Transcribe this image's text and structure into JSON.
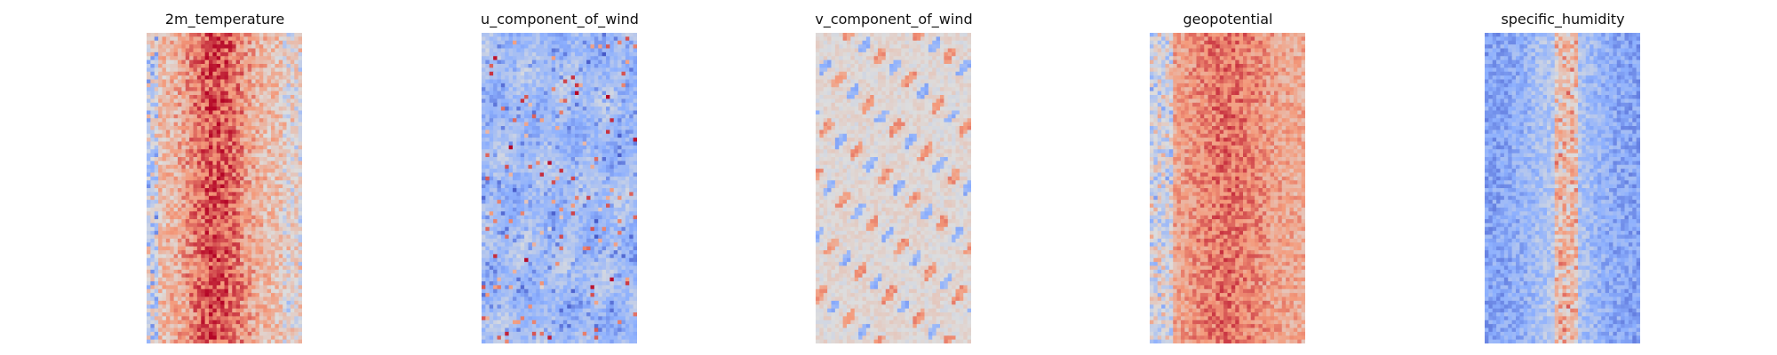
{
  "chart_data": [
    {
      "type": "heatmap",
      "title": "2m_temperature",
      "colormap": "coolwarm",
      "grid": false,
      "axes_visible": false,
      "pattern": "warm central band (dark red) flanked by lighter salmon, cool blue speckle along left edge"
    },
    {
      "type": "heatmap",
      "title": "u_component_of_wind",
      "colormap": "coolwarm",
      "grid": false,
      "axes_visible": false,
      "pattern": "predominantly light blue with scattered darker blue patches and sparse red streaks"
    },
    {
      "type": "heatmap",
      "title": "v_component_of_wind",
      "colormap": "coolwarm",
      "grid": false,
      "axes_visible": false,
      "pattern": "near-neutral grey/beige field with small scattered red and blue blobs"
    },
    {
      "type": "heatmap",
      "title": "geopotential",
      "colormap": "coolwarm",
      "grid": false,
      "axes_visible": false,
      "pattern": "salmon/red field with darker red center speckle, blue streaks on left margin"
    },
    {
      "type": "heatmap",
      "title": "specific_humidity",
      "colormap": "coolwarm",
      "grid": false,
      "axes_visible": false,
      "pattern": "blue field with darker blue edges, narrow reddish central column"
    }
  ]
}
